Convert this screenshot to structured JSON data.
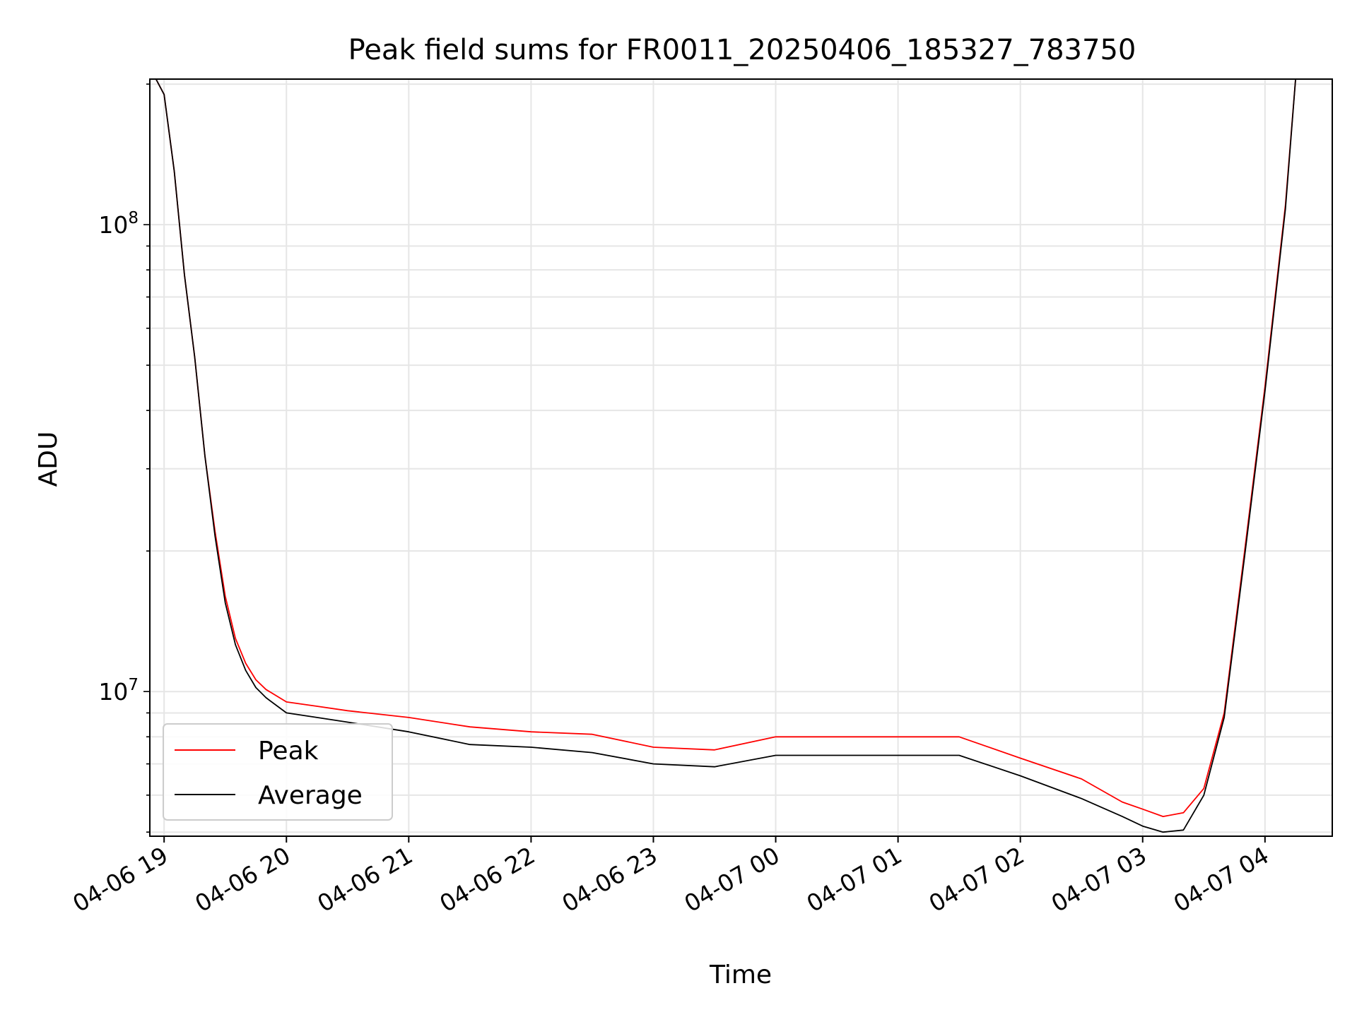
{
  "chart_data": {
    "type": "line",
    "title": "Peak field sums for FR0011_20250406_185327_783750",
    "xlabel": "Time",
    "ylabel": "ADU",
    "yscale": "log",
    "xlim": [
      "2025-04-06 18:53",
      "2025-04-07 04:33"
    ],
    "ylim": [
      4900000,
      205000000
    ],
    "grid": true,
    "legend_position": "lower-left",
    "x_ticks": [
      "2025-04-06 19:00",
      "2025-04-06 20:00",
      "2025-04-06 21:00",
      "2025-04-06 22:00",
      "2025-04-06 23:00",
      "2025-04-07 00:00",
      "2025-04-07 01:00",
      "2025-04-07 02:00",
      "2025-04-07 03:00",
      "2025-04-07 04:00"
    ],
    "x_tick_labels": [
      "04-06 19",
      "04-06 20",
      "04-06 21",
      "04-06 22",
      "04-06 23",
      "04-07 00",
      "04-07 01",
      "04-07 02",
      "04-07 03",
      "04-07 04"
    ],
    "y_ticks": [
      10000000,
      100000000
    ],
    "y_tick_labels": [
      {
        "base": "10",
        "exp": "7"
      },
      {
        "base": "10",
        "exp": "8"
      }
    ],
    "series": [
      {
        "name": "Peak",
        "color": "#ff0000",
        "x": [
          "2025-04-06 18:56",
          "2025-04-06 19:00",
          "2025-04-06 19:05",
          "2025-04-06 19:10",
          "2025-04-06 19:15",
          "2025-04-06 19:20",
          "2025-04-06 19:25",
          "2025-04-06 19:30",
          "2025-04-06 19:35",
          "2025-04-06 19:40",
          "2025-04-06 19:45",
          "2025-04-06 19:50",
          "2025-04-06 20:00",
          "2025-04-06 20:15",
          "2025-04-06 20:30",
          "2025-04-06 21:00",
          "2025-04-06 21:30",
          "2025-04-06 22:00",
          "2025-04-06 22:30",
          "2025-04-06 23:00",
          "2025-04-06 23:30",
          "2025-04-07 00:00",
          "2025-04-07 00:30",
          "2025-04-07 01:00",
          "2025-04-07 01:30",
          "2025-04-07 02:00",
          "2025-04-07 02:30",
          "2025-04-07 02:50",
          "2025-04-07 03:00",
          "2025-04-07 03:10",
          "2025-04-07 03:20",
          "2025-04-07 03:30",
          "2025-04-07 03:40",
          "2025-04-07 03:50",
          "2025-04-07 04:00",
          "2025-04-07 04:10",
          "2025-04-07 04:15"
        ],
        "y": [
          205000000,
          190000000,
          130000000,
          78000000,
          52000000,
          32000000,
          22000000,
          16000000,
          13000000,
          11500000,
          10600000,
          10100000,
          9500000,
          9300000,
          9100000,
          8800000,
          8400000,
          8200000,
          8100000,
          7600000,
          7500000,
          8000000,
          8000000,
          8000000,
          8000000,
          7200000,
          6500000,
          5800000,
          5600000,
          5400000,
          5500000,
          6200000,
          9000000,
          20000000,
          45000000,
          110000000,
          205000000
        ]
      },
      {
        "name": "Average",
        "color": "#000000",
        "x": [
          "2025-04-06 18:56",
          "2025-04-06 19:00",
          "2025-04-06 19:05",
          "2025-04-06 19:10",
          "2025-04-06 19:15",
          "2025-04-06 19:20",
          "2025-04-06 19:25",
          "2025-04-06 19:30",
          "2025-04-06 19:35",
          "2025-04-06 19:40",
          "2025-04-06 19:45",
          "2025-04-06 19:50",
          "2025-04-06 20:00",
          "2025-04-06 20:15",
          "2025-04-06 20:30",
          "2025-04-06 21:00",
          "2025-04-06 21:30",
          "2025-04-06 22:00",
          "2025-04-06 22:30",
          "2025-04-06 23:00",
          "2025-04-06 23:30",
          "2025-04-07 00:00",
          "2025-04-07 00:30",
          "2025-04-07 01:00",
          "2025-04-07 01:30",
          "2025-04-07 02:00",
          "2025-04-07 02:30",
          "2025-04-07 02:50",
          "2025-04-07 03:00",
          "2025-04-07 03:10",
          "2025-04-07 03:20",
          "2025-04-07 03:30",
          "2025-04-07 03:40",
          "2025-04-07 03:50",
          "2025-04-07 04:00",
          "2025-04-07 04:10",
          "2025-04-07 04:15"
        ],
        "y": [
          205000000,
          190000000,
          130000000,
          78000000,
          52000000,
          32000000,
          21500000,
          15500000,
          12600000,
          11100000,
          10200000,
          9700000,
          9000000,
          8800000,
          8600000,
          8200000,
          7700000,
          7600000,
          7400000,
          7000000,
          6900000,
          7300000,
          7300000,
          7300000,
          7300000,
          6600000,
          5900000,
          5400000,
          5150000,
          5000000,
          5050000,
          6000000,
          8800000,
          19500000,
          44000000,
          108000000,
          205000000
        ]
      }
    ]
  }
}
